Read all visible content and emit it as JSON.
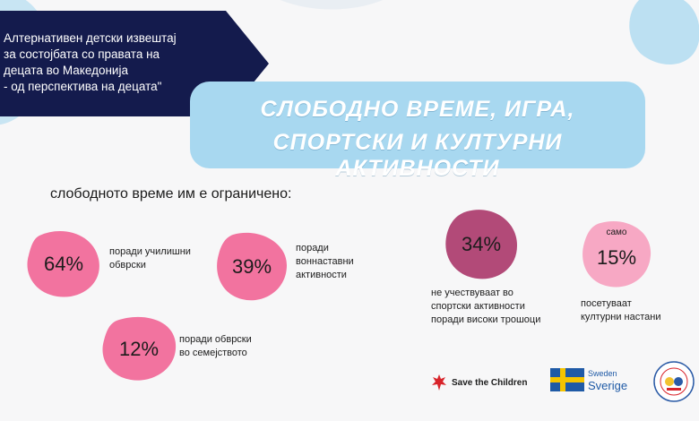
{
  "header": {
    "report_lines": [
      "Алтернативен детски извештај",
      "за состојбата со правата на",
      "децата во Македонија",
      "- од перспектива на децата\""
    ],
    "title_line1": "СЛОБОДНО ВРЕМЕ, ИГРА,",
    "title_line2": "СПОРТСКИ И КУЛТУРНИ АКТИВНОСТИ"
  },
  "subtitle": "слободното време им е ограничено:",
  "stats": {
    "s64": {
      "value": "64%",
      "caption1": "поради училишни",
      "caption2": "обврски"
    },
    "s39": {
      "value": "39%",
      "caption1": "поради",
      "caption2": "воннаставни",
      "caption3": "активности"
    },
    "s12": {
      "value": "12%",
      "caption1": "поради обврски",
      "caption2": "во семејството"
    },
    "s34": {
      "value": "34%",
      "caption1": "не учествуваат во",
      "caption2": "спортски активности",
      "caption3": "поради високи трошоци"
    },
    "s15": {
      "prefix": "само",
      "value": "15%",
      "caption1": "посетуваат",
      "caption2": "културни настани"
    }
  },
  "logos": {
    "save_the_children": "Save the Children",
    "sweden": "Sweden",
    "sverige": "Sverige"
  },
  "colors": {
    "navy": "#141b4d",
    "light_blue": "#a8d8f0",
    "pink": "#f2739f",
    "mauve": "#b24a78",
    "light_pink": "#f7a8c4"
  }
}
